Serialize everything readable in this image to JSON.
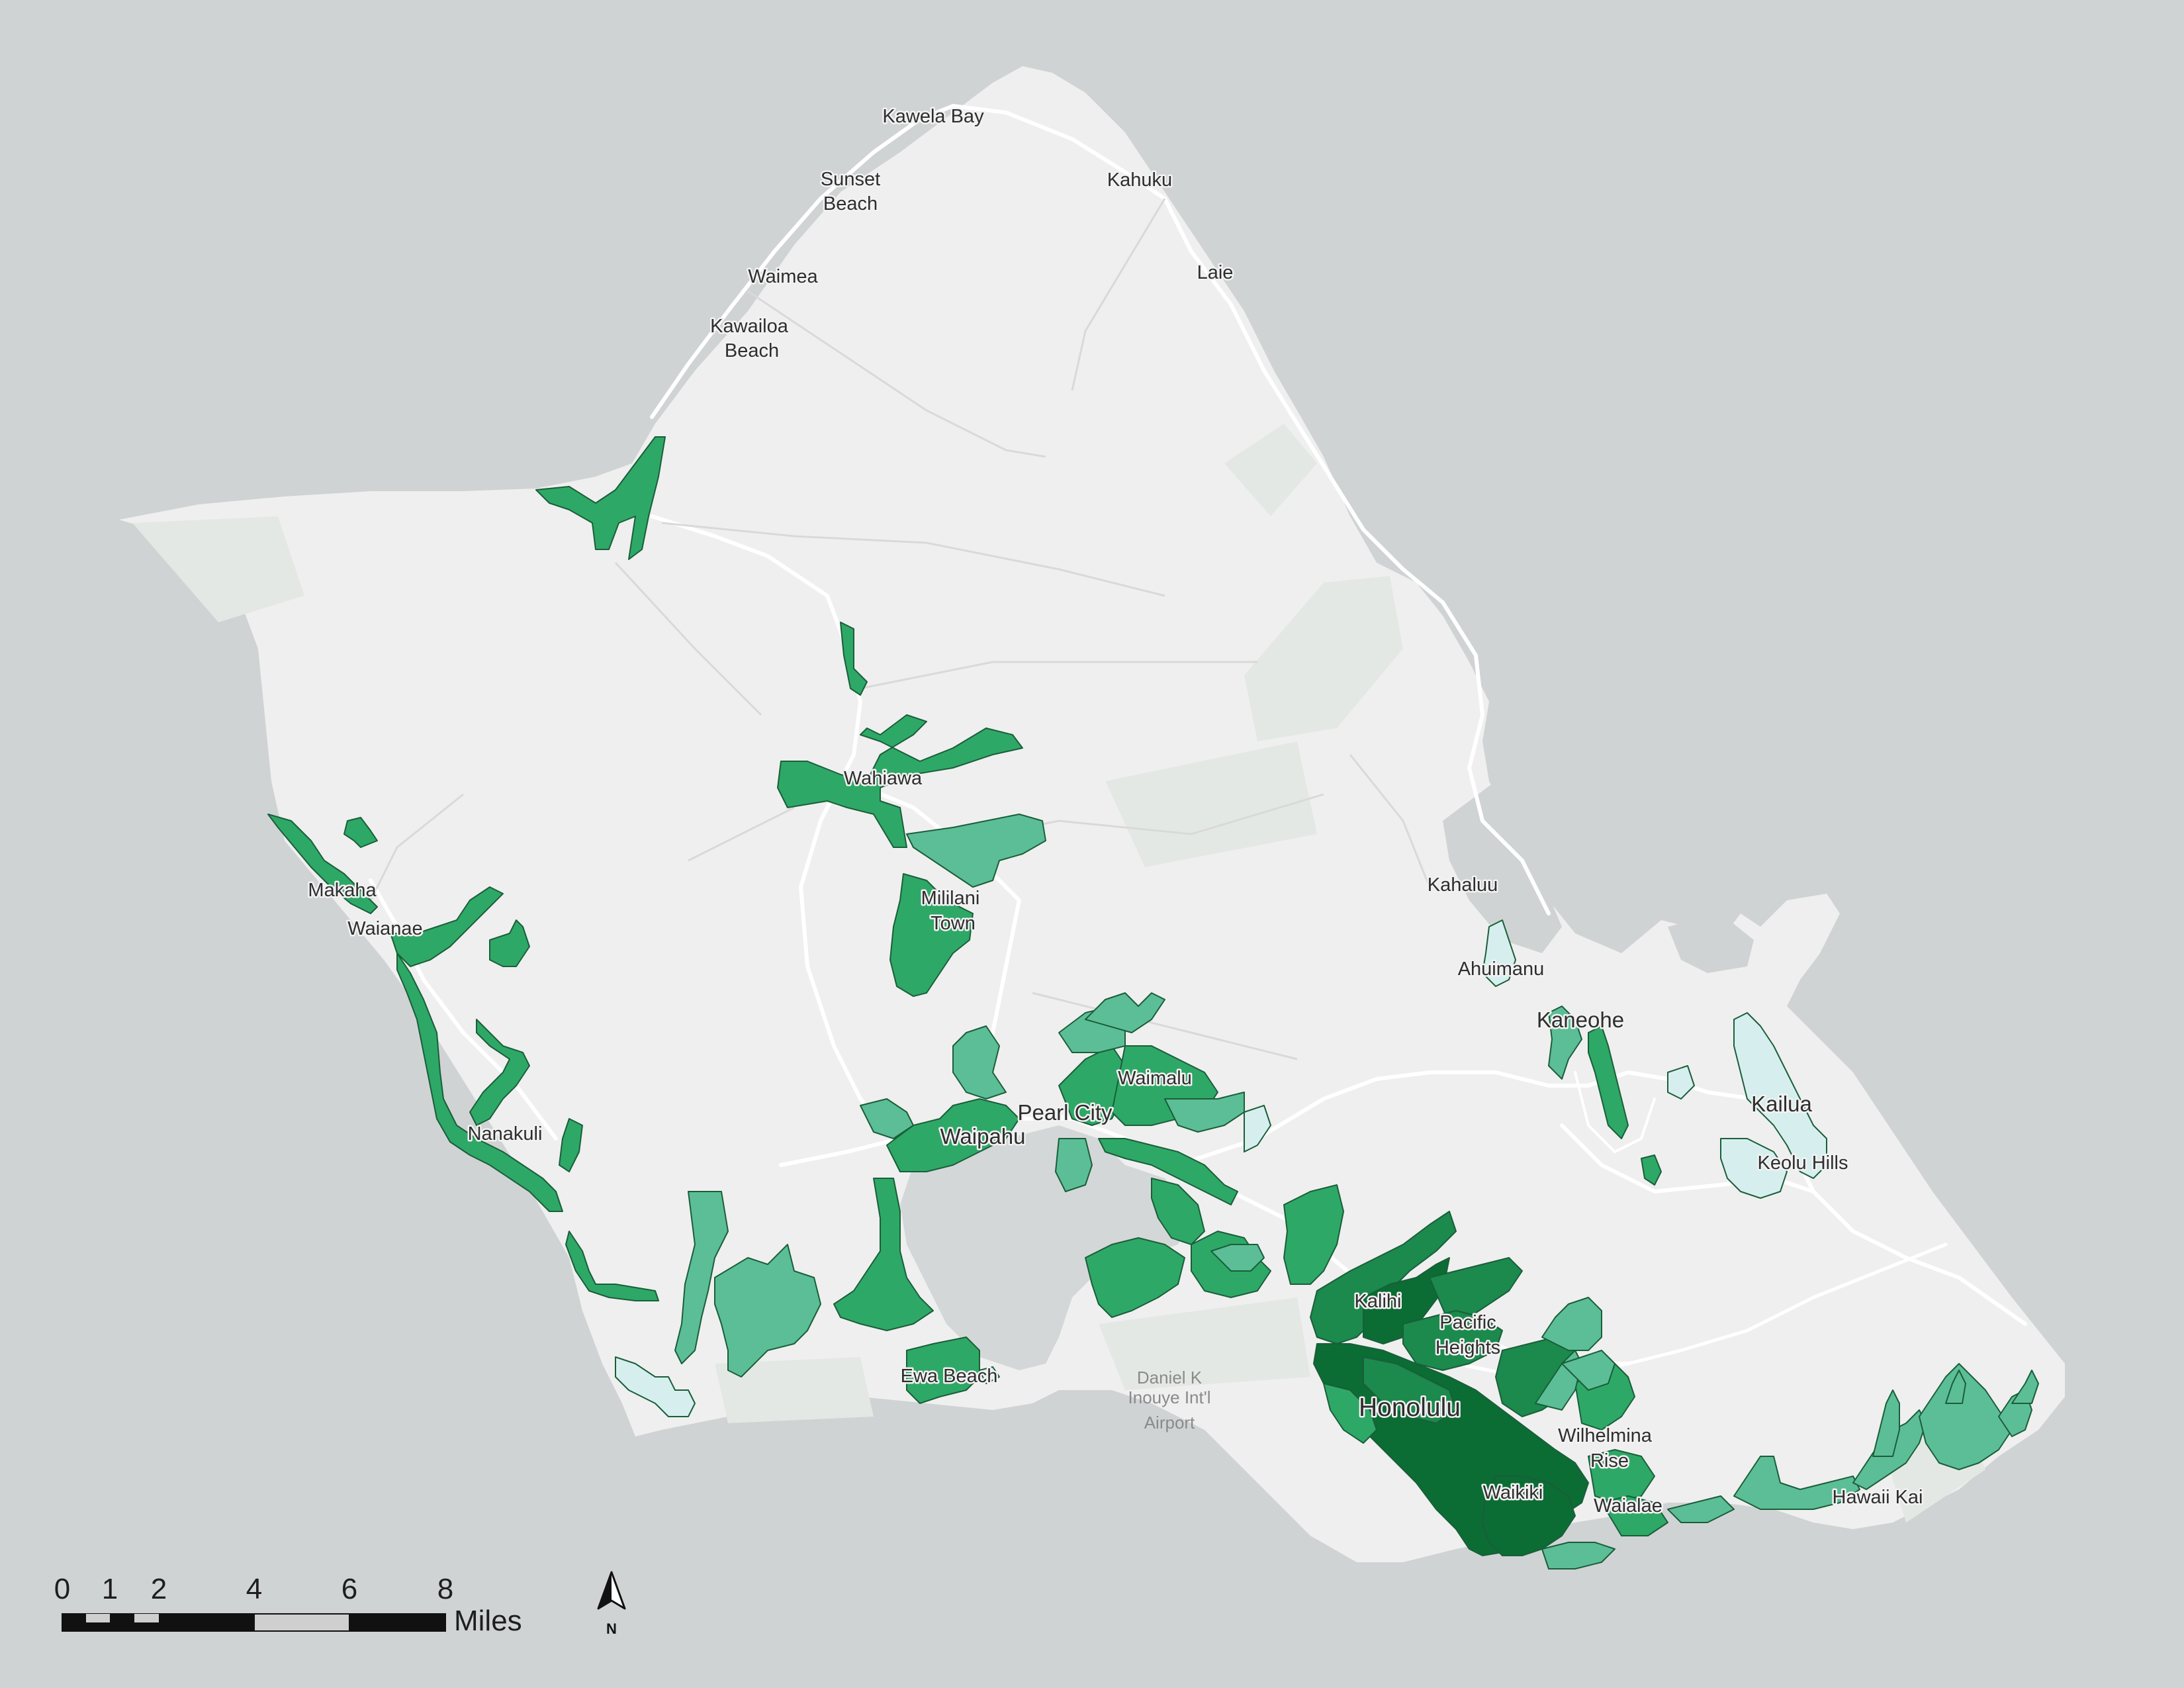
{
  "colors": {
    "ocean": "#d0d3d4",
    "land": "#efefef",
    "park": "#e4e8e4",
    "road": "#ffffff",
    "harbor": "#d4d7d8",
    "class_very_light": "#d6efee",
    "class_light": "#5cbe96",
    "class_medium": "#2ea866",
    "class_dark": "#1b8a4c",
    "class_darkest": "#0b6c34"
  },
  "labels": {
    "kawela_bay": "Kawela Bay",
    "kahuku": "Kahuku",
    "sunset_beach_1": "Sunset",
    "sunset_beach_2": "Beach",
    "waimea": "Waimea",
    "laie": "Laie",
    "kawailoa_1": "Kawailoa",
    "kawailoa_2": "Beach",
    "wahiawa": "Wahiawa",
    "makaha": "Makaha",
    "waianae": "Waianae",
    "mililani_1": "Mililani",
    "mililani_2": "Town",
    "kahaluu": "Kahaluu",
    "ahuimanu": "Ahuimanu",
    "kaneohe": "Kaneohe",
    "waimalu": "Waimalu",
    "pearl_city": "Pearl City",
    "kailua": "Kailua",
    "waipahu": "Waipahu",
    "nanakuli": "Nanakuli",
    "keolu_hills": "Keolu Hills",
    "kalihi": "Kalihi",
    "pacific_heights_1": "Pacific",
    "pacific_heights_2": "Heights",
    "ewa_beach": "Ewa Beach",
    "airport_1": "Daniel K",
    "airport_2": "Inouye Int'l",
    "airport_3": "Airport",
    "honolulu": "Honolulu",
    "wilhelmina_1": "Wilhelmina",
    "wilhelmina_2": "Rise",
    "waikiki": "Waikiki",
    "waialae": "Waialae",
    "hawaii_kai": "Hawaii Kai"
  },
  "scale_bar": {
    "ticks": [
      "0",
      "1",
      "2",
      "4",
      "6",
      "8"
    ],
    "unit": "Miles"
  },
  "north_arrow": {
    "label": "N"
  }
}
